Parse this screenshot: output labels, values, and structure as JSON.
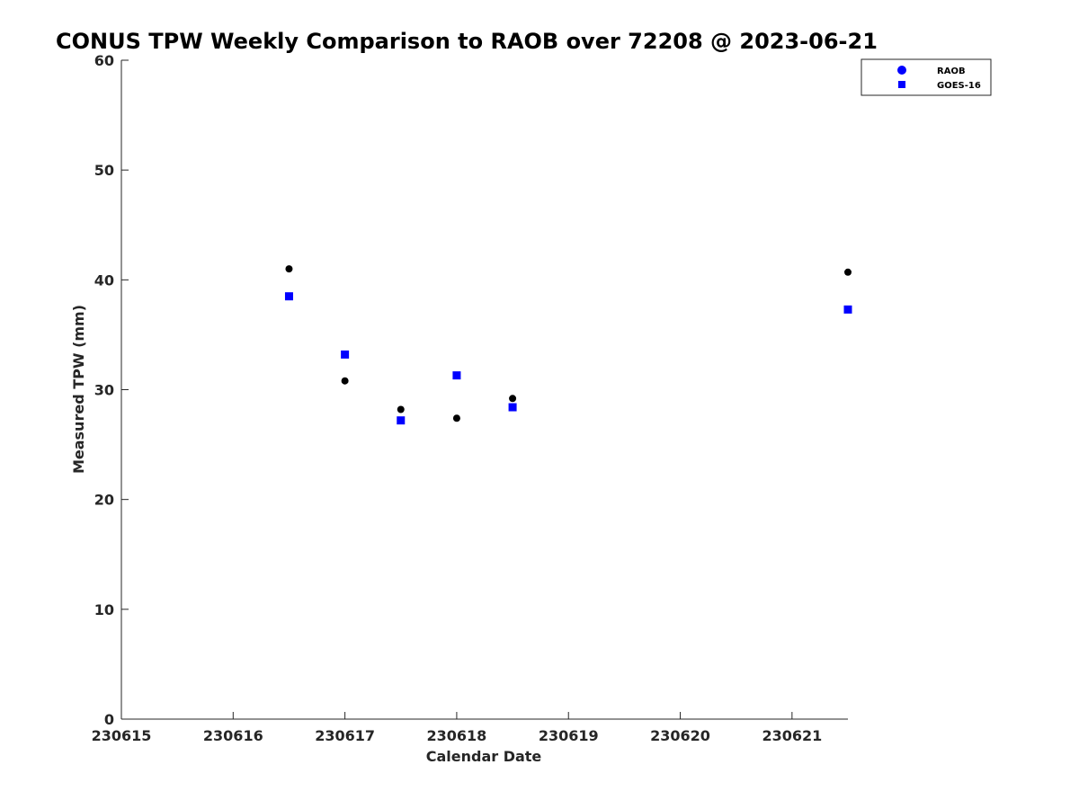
{
  "chart_data": {
    "type": "scatter",
    "title": "CONUS TPW Weekly Comparison to RAOB over 72208 @ 2023-06-21",
    "xlabel": "Calendar Date",
    "ylabel": "Measured TPW (mm)",
    "xlim": [
      "2023-06-15",
      "2023-06-21T12:00"
    ],
    "ylim": [
      0,
      60
    ],
    "x_ticks": [
      {
        "date": "2023-06-15",
        "label": "230615"
      },
      {
        "date": "2023-06-16",
        "label": "230616"
      },
      {
        "date": "2023-06-17",
        "label": "230617"
      },
      {
        "date": "2023-06-18",
        "label": "230618"
      },
      {
        "date": "2023-06-19",
        "label": "230619"
      },
      {
        "date": "2023-06-20",
        "label": "230620"
      },
      {
        "date": "2023-06-21",
        "label": "230621"
      }
    ],
    "y_ticks": [
      0,
      10,
      20,
      30,
      40,
      50,
      60
    ],
    "grid": false,
    "legend_position": "top-right",
    "series": [
      {
        "name": "RAOB",
        "marker": "circle",
        "color": "#000000",
        "legend_color": "#0000ff",
        "points": [
          {
            "x": "2023-06-16T12:00",
            "y": 41.0
          },
          {
            "x": "2023-06-17T00:00",
            "y": 30.8
          },
          {
            "x": "2023-06-17T12:00",
            "y": 28.2
          },
          {
            "x": "2023-06-18T00:00",
            "y": 27.4
          },
          {
            "x": "2023-06-18T12:00",
            "y": 29.2
          },
          {
            "x": "2023-06-21T12:00",
            "y": 40.7
          }
        ]
      },
      {
        "name": "GOES-16",
        "marker": "square",
        "color": "#0000ff",
        "legend_color": "#0000ff",
        "points": [
          {
            "x": "2023-06-16T12:00",
            "y": 38.5
          },
          {
            "x": "2023-06-17T00:00",
            "y": 33.2
          },
          {
            "x": "2023-06-17T12:00",
            "y": 27.2
          },
          {
            "x": "2023-06-18T00:00",
            "y": 31.3
          },
          {
            "x": "2023-06-18T12:00",
            "y": 28.4
          },
          {
            "x": "2023-06-21T12:00",
            "y": 37.3
          }
        ]
      }
    ]
  }
}
